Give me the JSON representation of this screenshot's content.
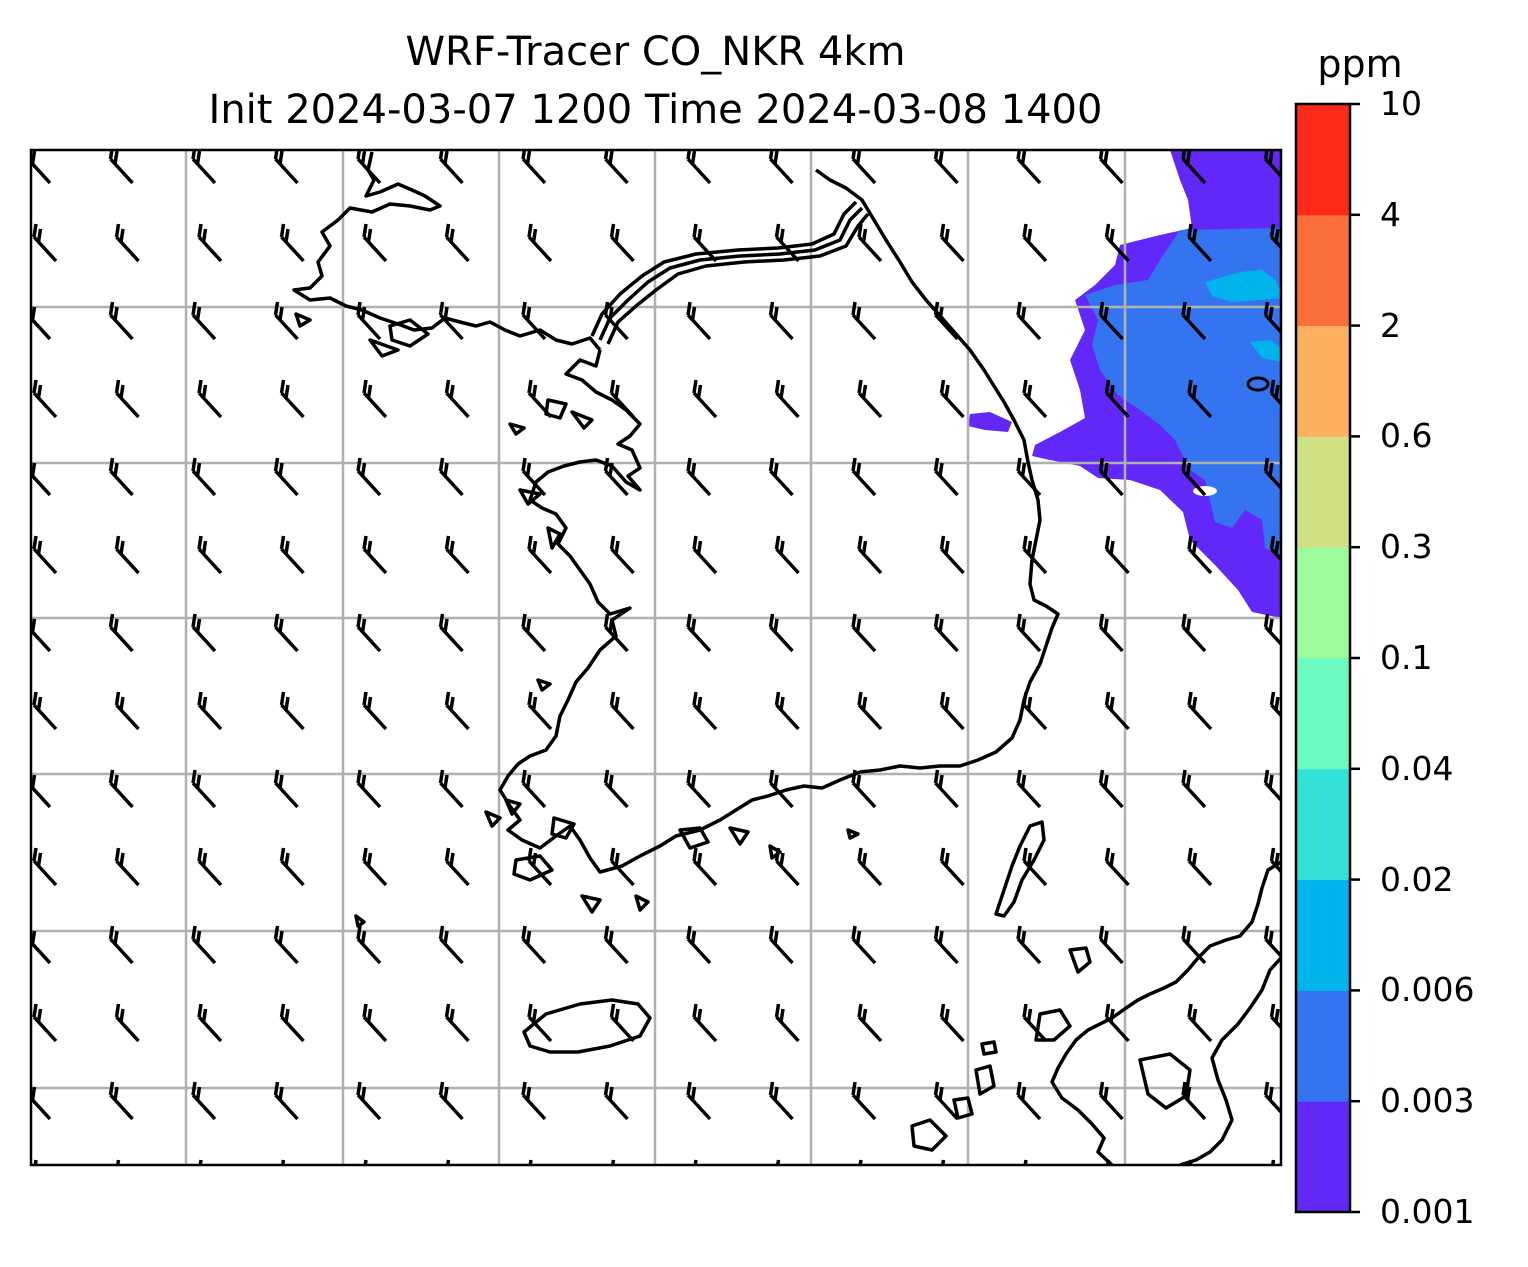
{
  "title": {
    "line1": "WRF-Tracer CO_NKR 4km",
    "line2": "Init 2024-03-07 1200 Time 2024-03-08 1400"
  },
  "colorbar": {
    "unit": "ppm",
    "levels": [
      "0.001",
      "0.003",
      "0.006",
      "0.02",
      "0.04",
      "0.1",
      "0.3",
      "0.6",
      "2",
      "4",
      "10"
    ],
    "colors": [
      "#6228f8",
      "#3474f0",
      "#02b4ec",
      "#32e0d6",
      "#6afcc0",
      "#9cfc9c",
      "#d0e184",
      "#fcb060",
      "#fc6f3a",
      "#fc2a18"
    ]
  },
  "map": {
    "grid": "on",
    "plume_color_low": "#6228f8",
    "plume_color_mid": "#3474f0",
    "plume_color_high": "#02b4ec",
    "wind": "northwesterly barbs, 10-15 kt"
  }
}
